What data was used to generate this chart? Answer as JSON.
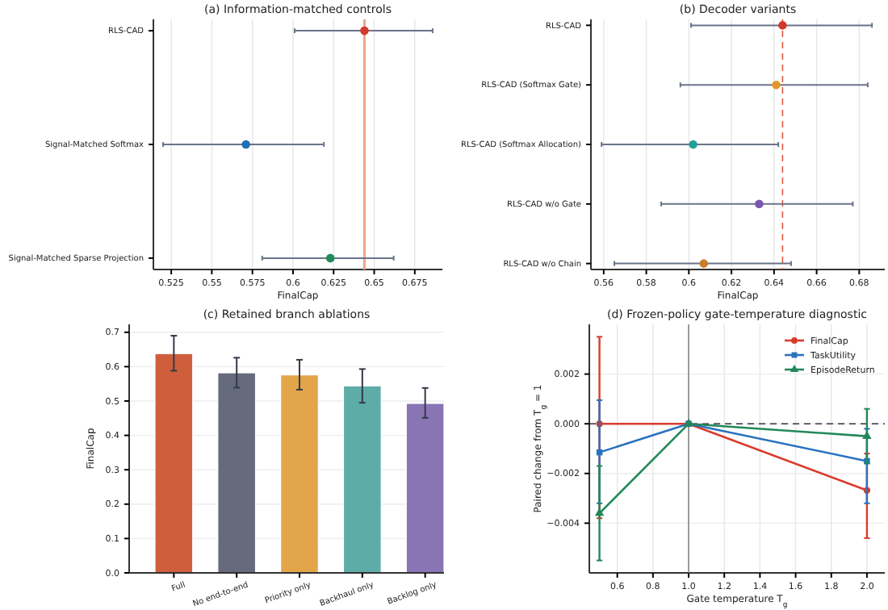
{
  "chart_data": [
    {
      "type": "scatter",
      "title": "(a) Information-matched controls",
      "xlabel": "FinalCap",
      "orientation": "horizontal",
      "categories": [
        "RLS-CAD",
        "Signal-Matched Softmax",
        "Signal-Matched Sparse Projection"
      ],
      "values": [
        0.644,
        0.571,
        0.623
      ],
      "colors": [
        "#d03a2a",
        "#1f6fb5",
        "#1f8a5a"
      ],
      "errors": [
        [
          0.601,
          0.686
        ],
        [
          0.52,
          0.619
        ],
        [
          0.581,
          0.662
        ]
      ],
      "xlim": [
        0.514,
        0.692
      ],
      "xticks": [
        0.525,
        0.55,
        0.575,
        0.6,
        0.625,
        0.65,
        0.675
      ],
      "grid": "x",
      "marker": "circle",
      "ref_lines": [
        {
          "axis": "x",
          "value": 0.644,
          "color": "#f2a58a",
          "line_style": "solid"
        }
      ]
    },
    {
      "type": "scatter",
      "title": "(b) Decoder variants",
      "xlabel": "FinalCap",
      "orientation": "horizontal",
      "categories": [
        "RLS-CAD",
        "RLS-CAD (Softmax Gate)",
        "RLS-CAD (Softmax Allocation)",
        "RLS-CAD w/o Gate",
        "RLS-CAD w/o Chain"
      ],
      "values": [
        0.644,
        0.641,
        0.602,
        0.633,
        0.607
      ],
      "colors": [
        "#d03a2a",
        "#e0962b",
        "#22a09a",
        "#7b55b0",
        "#c97f2a"
      ],
      "errors": [
        [
          0.601,
          0.686
        ],
        [
          0.596,
          0.684
        ],
        [
          0.559,
          0.642
        ],
        [
          0.587,
          0.677
        ],
        [
          0.565,
          0.648
        ]
      ],
      "xlim": [
        0.554,
        0.692
      ],
      "xticks": [
        0.56,
        0.58,
        0.6,
        0.62,
        0.64,
        0.66,
        0.68
      ],
      "grid": "x",
      "marker": "circle",
      "ref_lines": [
        {
          "axis": "x",
          "value": 0.644,
          "color": "#e05a40",
          "line_style": "dashed"
        }
      ]
    },
    {
      "type": "bar",
      "title": "(c) Retained branch ablations",
      "ylabel": "FinalCap",
      "categories": [
        "Full",
        "No end-to-end",
        "Priority only",
        "Backhaul only",
        "Backlog only"
      ],
      "values": [
        0.638,
        0.582,
        0.576,
        0.544,
        0.493
      ],
      "colors": [
        "#cc5533",
        "#5d6275",
        "#e0a040",
        "#55a8a3",
        "#836eb0"
      ],
      "errors": [
        [
          0.588,
          0.69
        ],
        [
          0.539,
          0.626
        ],
        [
          0.533,
          0.62
        ],
        [
          0.495,
          0.593
        ],
        [
          0.451,
          0.538
        ]
      ],
      "ylim": [
        0,
        0.723
      ],
      "yticks": [
        {
          "value": 0,
          "label": "0.0"
        },
        0.1,
        0.2,
        0.3,
        0.4,
        0.5,
        0.6,
        0.7
      ],
      "grid": "y"
    },
    {
      "type": "line",
      "title": "(d) Frozen-policy gate-temperature diagnostic",
      "xlabel": "Gate temperature T$_{g}$",
      "ylabel": "Paired change from T$_{g}$ = 1",
      "x": [
        0.5,
        1.0,
        2.0
      ],
      "series": [
        {
          "name": "FinalCap",
          "color": "#d83c2c",
          "marker": "circle",
          "values": [
            0,
            0,
            -0.00268
          ],
          "errors": [
            [
              -0.0038,
              0.0035
            ],
            null,
            [
              -0.0046,
              -0.0012
            ]
          ]
        },
        {
          "name": "TaskUtility",
          "color": "#2a72bd",
          "marker": "square",
          "values": [
            -0.00115,
            0,
            -0.0015
          ],
          "errors": [
            [
              -0.0032,
              0.00095
            ],
            null,
            [
              -0.0032,
              -0.0002
            ]
          ]
        },
        {
          "name": "EpisodeReturn",
          "color": "#22885a",
          "marker": "triangle",
          "values": [
            -0.0036,
            0,
            -0.0005
          ],
          "errors": [
            [
              -0.0055,
              -0.0017
            ],
            null,
            [
              -0.0016,
              0.0006
            ]
          ]
        }
      ],
      "xlim": [
        0.443,
        2.1
      ],
      "xticks": [
        {
          "value": 0.6,
          "label": "0.6"
        },
        {
          "value": 0.8,
          "label": "0.8"
        },
        {
          "value": 1.0,
          "label": "1.0"
        },
        {
          "value": 1.2,
          "label": "1.2"
        },
        {
          "value": 1.4,
          "label": "1.4"
        },
        {
          "value": 1.6,
          "label": "1.6"
        },
        {
          "value": 1.8,
          "label": "1.8"
        },
        {
          "value": 2.0,
          "label": "2.0"
        }
      ],
      "ylim": [
        -0.006,
        0.004
      ],
      "yticks": [
        {
          "value": -0.004,
          "label": "−0.004"
        },
        {
          "value": -0.002,
          "label": "−0.002"
        },
        {
          "value": 0,
          "label": "0.000"
        },
        {
          "value": 0.002,
          "label": "0.002"
        }
      ],
      "grid": true,
      "legend": "top right",
      "ref_lines": [
        {
          "axis": "y",
          "value": 0,
          "color": "#333344",
          "line_style": "dashed"
        },
        {
          "axis": "x",
          "value": 1.0,
          "color": "#888888",
          "line_style": "solid"
        }
      ]
    }
  ]
}
